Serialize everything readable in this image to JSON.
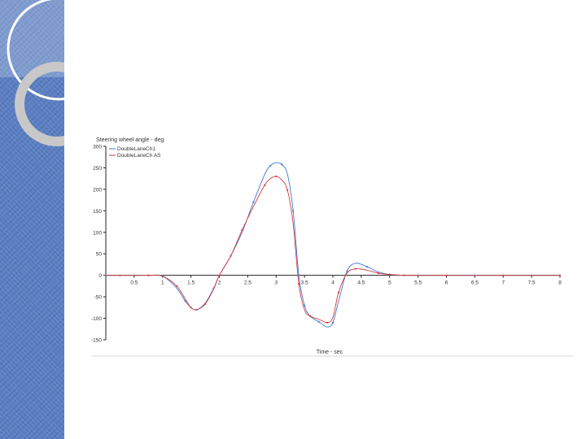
{
  "slide": {
    "colors": {
      "side_panel": "#5b7fc2",
      "background": "#ffffff"
    }
  },
  "chart_data": {
    "type": "line",
    "title": "Steering wheel angle - deg",
    "xlabel": "Time - sec",
    "ylabel": "",
    "xlim": [
      0,
      8
    ],
    "ylim": [
      -150,
      300
    ],
    "x_ticks": [
      0.5,
      1,
      1.5,
      2,
      2.5,
      3,
      3.5,
      4,
      4.5,
      5,
      5.5,
      6,
      6.5,
      7,
      7.5,
      8
    ],
    "x_tick_labels": [
      "0.5",
      "1",
      "1.5",
      "2",
      "2.5",
      "3",
      "3.5",
      "4",
      "4.5",
      "5",
      "5.5",
      "6",
      "6.5",
      "7",
      "7.5",
      "8"
    ],
    "y_ticks": [
      300,
      250,
      200,
      150,
      100,
      50,
      0,
      -50,
      -100,
      -150
    ],
    "y_tick_labels": [
      "300",
      "250",
      "200",
      "150",
      "100",
      "50",
      "0",
      "-50",
      "-100",
      "-150"
    ],
    "legend_position": "top-left",
    "grid": false,
    "x": [
      0,
      0.25,
      0.5,
      0.75,
      1,
      1.25,
      1.4,
      1.5,
      1.6,
      1.75,
      1.9,
      2,
      2.2,
      2.4,
      2.6,
      2.8,
      2.9,
      3,
      3.1,
      3.2,
      3.3,
      3.4,
      3.5,
      3.6,
      3.75,
      3.9,
      4,
      4.1,
      4.25,
      4.4,
      4.6,
      4.8,
      5,
      5.25,
      5.5,
      6,
      6.5,
      7,
      7.5,
      8
    ],
    "series": [
      {
        "name": "DoubleLaneCh1",
        "color": "#3a78d8",
        "values": [
          0,
          0,
          0,
          0,
          -2,
          -30,
          -60,
          -75,
          -80,
          -65,
          -30,
          0,
          45,
          100,
          170,
          235,
          255,
          262,
          258,
          235,
          150,
          0,
          -70,
          -95,
          -108,
          -120,
          -110,
          -60,
          10,
          28,
          20,
          8,
          2,
          0,
          0,
          0,
          0,
          0,
          0,
          0
        ]
      },
      {
        "name": "DoubleLaneCh AS",
        "color": "#d83a3a",
        "values": [
          0,
          0,
          0,
          0,
          -2,
          -25,
          -55,
          -75,
          -80,
          -67,
          -32,
          0,
          45,
          105,
          160,
          210,
          225,
          230,
          222,
          198,
          120,
          -20,
          -80,
          -95,
          -102,
          -110,
          -98,
          -40,
          5,
          15,
          12,
          5,
          2,
          0,
          0,
          0,
          0,
          0,
          0,
          0
        ]
      }
    ]
  }
}
